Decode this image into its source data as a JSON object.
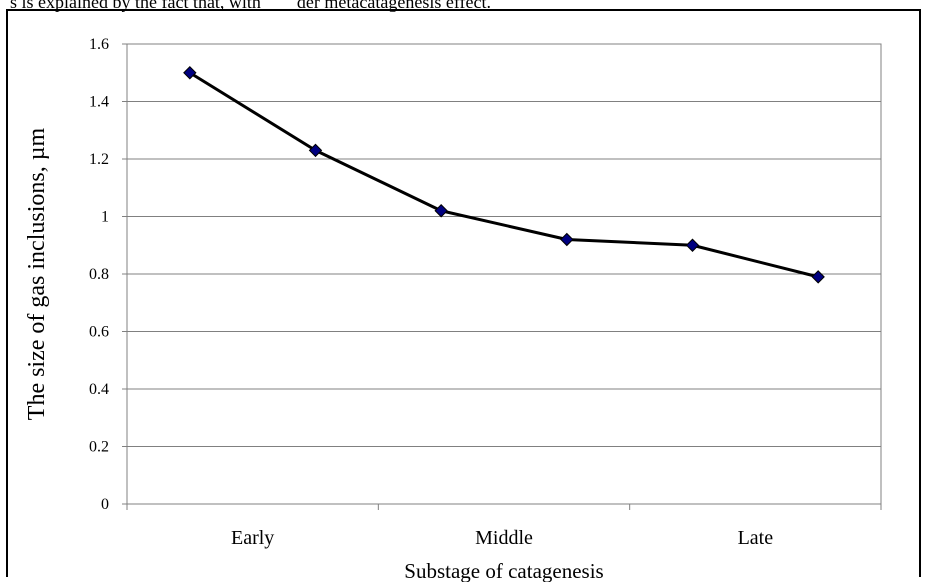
{
  "page": {
    "top_text": "s is explained by the fact that, with        der metacatagenesis effect."
  },
  "chart_data": {
    "type": "line",
    "title": "",
    "xlabel": "Substage of catagenesis",
    "ylabel": "The size of gas inclusions, µm",
    "ylim": [
      0,
      1.6
    ],
    "yticks": [
      "0",
      "0.2",
      "0.4",
      "0.6",
      "0.8",
      "1",
      "1.2",
      "1.4",
      "1.6"
    ],
    "categories": [
      "Early",
      "Middle",
      "Late"
    ],
    "x": [
      1,
      2,
      3,
      4,
      5,
      6
    ],
    "series": [
      {
        "values": [
          1.5,
          1.23,
          1.02,
          0.92,
          0.9,
          0.79
        ]
      }
    ],
    "grid": true,
    "legend": "none",
    "colors": {
      "line": "#000000",
      "marker": "#000080",
      "grid": "#808080"
    }
  }
}
